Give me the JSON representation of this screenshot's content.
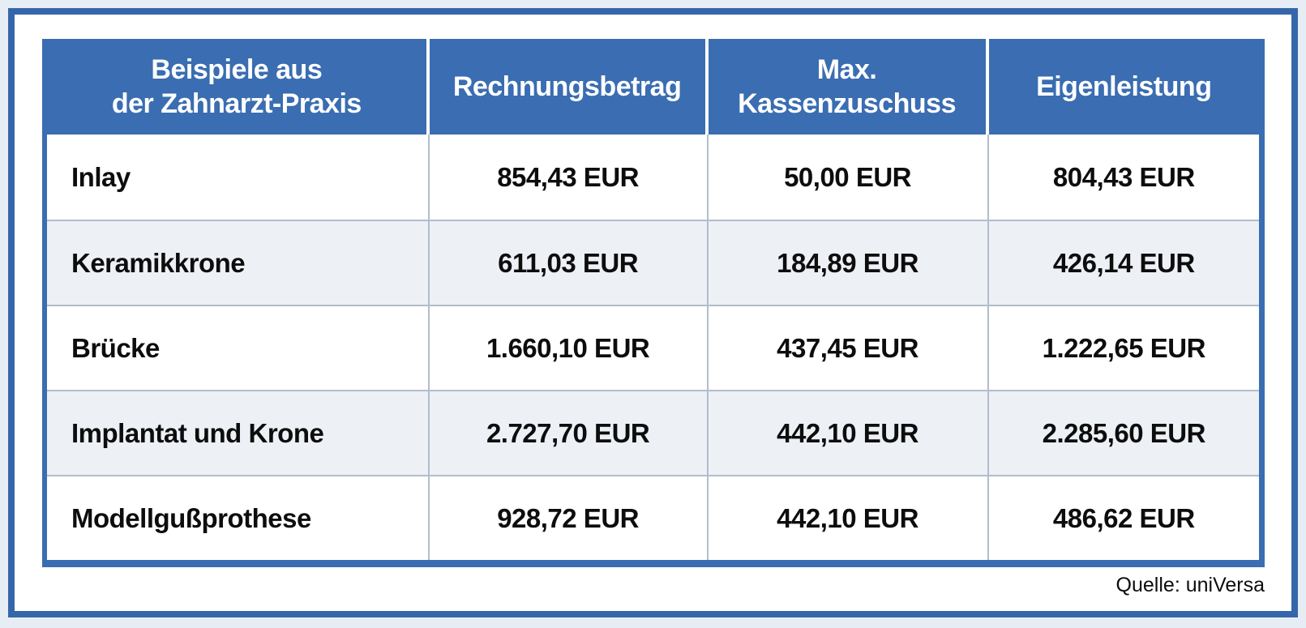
{
  "page": {
    "background_color": "#e7edf5",
    "frame_border_color": "#3566aa",
    "accent_blue": "#3a6db1",
    "alt_row_color": "#edf0f5",
    "grid_line_color": "#b3bdcb"
  },
  "table": {
    "header": {
      "columns": [
        {
          "lines": [
            "Beispiele aus",
            "der Zahnarzt-Praxis"
          ]
        },
        {
          "lines": [
            "Rechnungsbetrag"
          ]
        },
        {
          "lines": [
            "Max.",
            "Kassenzuschuss"
          ]
        },
        {
          "lines": [
            "Eigenleistung"
          ]
        }
      ]
    },
    "rows": [
      {
        "treatment": "Inlay",
        "invoice": "854,43 EUR",
        "subsidy": "50,00 EUR",
        "own": "804,43 EUR"
      },
      {
        "treatment": "Keramikkrone",
        "invoice": "611,03 EUR",
        "subsidy": "184,89 EUR",
        "own": "426,14 EUR"
      },
      {
        "treatment": "Brücke",
        "invoice": "1.660,10 EUR",
        "subsidy": "437,45 EUR",
        "own": "1.222,65 EUR"
      },
      {
        "treatment": "Implantat und Krone",
        "invoice": "2.727,70 EUR",
        "subsidy": "442,10 EUR",
        "own": "2.285,60 EUR"
      },
      {
        "treatment": "Modellgußprothese",
        "invoice": "928,72 EUR",
        "subsidy": "442,10 EUR",
        "own": "486,62 EUR"
      }
    ]
  },
  "source": {
    "label": "Quelle: uniVersa"
  },
  "chart_data": {
    "type": "table",
    "title": "Beispiele aus der Zahnarzt-Praxis",
    "columns": [
      "Beispiele aus der Zahnarzt-Praxis",
      "Rechnungsbetrag",
      "Max. Kassenzuschuss",
      "Eigenleistung"
    ],
    "rows": [
      [
        "Inlay",
        "854,43 EUR",
        "50,00 EUR",
        "804,43 EUR"
      ],
      [
        "Keramikkrone",
        "611,03 EUR",
        "184,89 EUR",
        "426,14 EUR"
      ],
      [
        "Brücke",
        "1.660,10 EUR",
        "437,45 EUR",
        "1.222,65 EUR"
      ],
      [
        "Implantat und Krone",
        "2.727,70 EUR",
        "442,10 EUR",
        "2.285,60 EUR"
      ],
      [
        "Modellgußprothese",
        "928,72 EUR",
        "442,10 EUR",
        "486,62 EUR"
      ]
    ],
    "numeric_eur": {
      "categories": [
        "Inlay",
        "Keramikkrone",
        "Brücke",
        "Implantat und Krone",
        "Modellgußprothese"
      ],
      "series": [
        {
          "name": "Rechnungsbetrag",
          "values": [
            854.43,
            611.03,
            1660.1,
            2727.7,
            928.72
          ]
        },
        {
          "name": "Max. Kassenzuschuss",
          "values": [
            50.0,
            184.89,
            437.45,
            442.1,
            442.1
          ]
        },
        {
          "name": "Eigenleistung",
          "values": [
            804.43,
            426.14,
            1222.65,
            2285.6,
            486.62
          ]
        }
      ]
    },
    "source": "Quelle: uniVersa",
    "layout": {
      "striped_rows": true,
      "header_bg": "#3a6db1",
      "unit": "EUR"
    }
  }
}
